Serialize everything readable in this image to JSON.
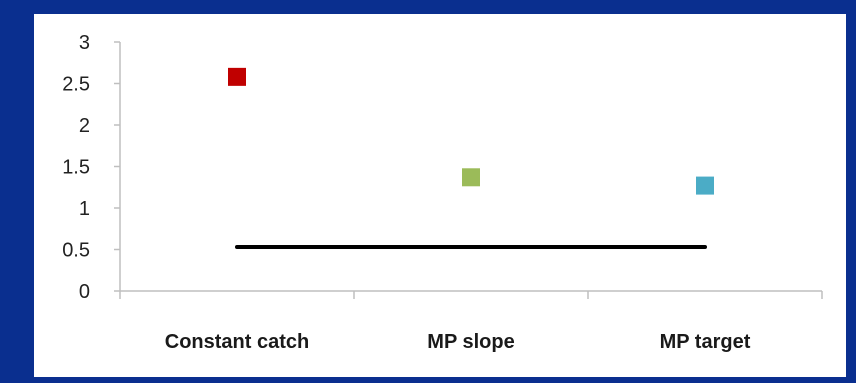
{
  "chart_data": {
    "type": "scatter",
    "categories": [
      "Constant catch",
      "MP slope",
      "MP target"
    ],
    "series": [
      {
        "values": [
          2.58,
          1.37,
          1.27
        ],
        "colors": [
          "#c00000",
          "#9bbb59",
          "#4bacc6"
        ],
        "marker": "square"
      }
    ],
    "reference_line": {
      "y": 0.53,
      "from_category": 0,
      "to_category": 2,
      "color": "#000000"
    },
    "ylim": [
      0,
      3
    ],
    "yticks": [
      "0",
      "0.5",
      "1",
      "1.5",
      "2",
      "2.5",
      "3"
    ],
    "grid": false
  },
  "colors": {
    "background": "#0a2f8f",
    "panel": "#ffffff",
    "axis": "#bfbfbf"
  }
}
